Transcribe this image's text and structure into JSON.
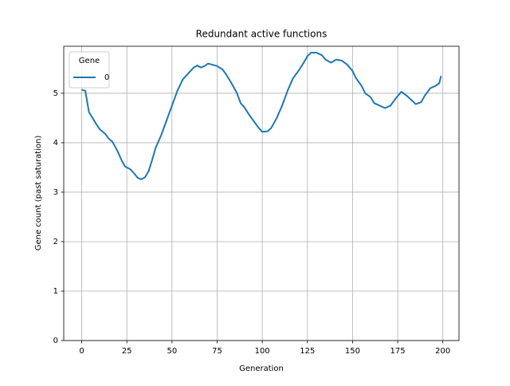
{
  "chart_data": {
    "type": "line",
    "title": "Redundant active functions",
    "x_label": "Generation",
    "y_label": "Gene count (past saturation)",
    "x": [
      0,
      2,
      4,
      6,
      8,
      10,
      13,
      15,
      17,
      20,
      22,
      24,
      27,
      29,
      31,
      33,
      35,
      37,
      39,
      41,
      44,
      47,
      50,
      53,
      56,
      59,
      62,
      64,
      66,
      68,
      70,
      72,
      75,
      78,
      80,
      83,
      86,
      88,
      90,
      93,
      96,
      98,
      100,
      103,
      105,
      108,
      111,
      114,
      117,
      120,
      123,
      125,
      127,
      130,
      133,
      135,
      138,
      141,
      144,
      147,
      150,
      152,
      155,
      157,
      160,
      162,
      165,
      168,
      171,
      174,
      177,
      180,
      183,
      185,
      188,
      190,
      193,
      196,
      198,
      199
    ],
    "series": [
      {
        "name": "0",
        "color": "#1f77b4",
        "values": [
          5.07,
          5.05,
          4.62,
          4.5,
          4.38,
          4.27,
          4.18,
          4.08,
          4.02,
          3.82,
          3.65,
          3.52,
          3.46,
          3.38,
          3.29,
          3.26,
          3.3,
          3.42,
          3.65,
          3.9,
          4.15,
          4.45,
          4.75,
          5.05,
          5.28,
          5.4,
          5.52,
          5.56,
          5.52,
          5.55,
          5.6,
          5.58,
          5.55,
          5.48,
          5.38,
          5.2,
          5.0,
          4.8,
          4.72,
          4.55,
          4.4,
          4.3,
          4.22,
          4.23,
          4.3,
          4.5,
          4.75,
          5.05,
          5.3,
          5.45,
          5.62,
          5.75,
          5.82,
          5.82,
          5.77,
          5.68,
          5.62,
          5.68,
          5.66,
          5.58,
          5.45,
          5.3,
          5.15,
          5.0,
          4.92,
          4.8,
          4.75,
          4.7,
          4.75,
          4.9,
          5.03,
          4.95,
          4.85,
          4.78,
          4.82,
          4.95,
          5.1,
          5.15,
          5.2,
          5.35
        ]
      }
    ],
    "legend_title": "Gene",
    "legend": "upper left",
    "xlim": [
      -9.95,
      208.95
    ],
    "ylim": [
      0,
      5.95
    ],
    "xticks": [
      0,
      25,
      50,
      75,
      100,
      125,
      150,
      175,
      200
    ],
    "yticks": [
      0,
      1,
      2,
      3,
      4,
      5
    ],
    "grid": true
  }
}
